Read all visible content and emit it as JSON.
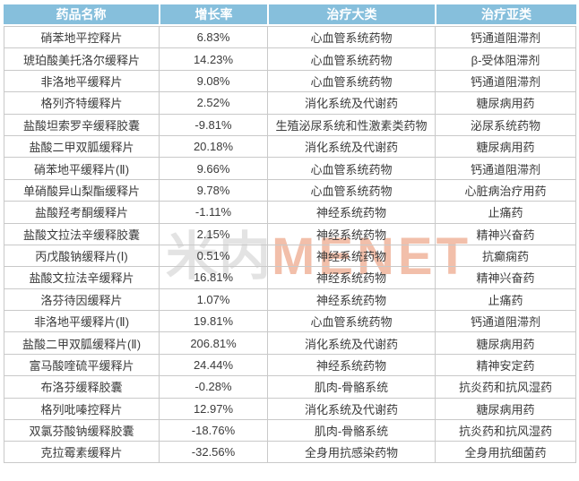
{
  "chart_data": {
    "type": "table",
    "columns": [
      "药品名称",
      "增长率",
      "治疗大类",
      "治疗亚类"
    ],
    "rows": [
      [
        "硝苯地平控释片",
        "6.83%",
        "心血管系统药物",
        "钙通道阻滞剂"
      ],
      [
        "琥珀酸美托洛尔缓释片",
        "14.23%",
        "心血管系统药物",
        "β-受体阻滞剂"
      ],
      [
        "非洛地平缓释片",
        "9.08%",
        "心血管系统药物",
        "钙通道阻滞剂"
      ],
      [
        "格列齐特缓释片",
        "2.52%",
        "消化系统及代谢药",
        "糖尿病用药"
      ],
      [
        "盐酸坦索罗辛缓释胶囊",
        "-9.81%",
        "生殖泌尿系统和性激素类药物",
        "泌尿系统药物"
      ],
      [
        "盐酸二甲双胍缓释片",
        "20.18%",
        "消化系统及代谢药",
        "糖尿病用药"
      ],
      [
        "硝苯地平缓释片(Ⅱ)",
        "9.66%",
        "心血管系统药物",
        "钙通道阻滞剂"
      ],
      [
        "单硝酸异山梨酯缓释片",
        "9.78%",
        "心血管系统药物",
        "心脏病治疗用药"
      ],
      [
        "盐酸羟考酮缓释片",
        "-1.11%",
        "神经系统药物",
        "止痛药"
      ],
      [
        "盐酸文拉法辛缓释胶囊",
        "2.15%",
        "神经系统药物",
        "精神兴奋药"
      ],
      [
        "丙戊酸钠缓释片(Ⅰ)",
        "0.51%",
        "神经系统药物",
        "抗癫痫药"
      ],
      [
        "盐酸文拉法辛缓释片",
        "16.81%",
        "神经系统药物",
        "精神兴奋药"
      ],
      [
        "洛芬待因缓释片",
        "1.07%",
        "神经系统药物",
        "止痛药"
      ],
      [
        "非洛地平缓释片(Ⅱ)",
        "19.81%",
        "心血管系统药物",
        "钙通道阻滞剂"
      ],
      [
        "盐酸二甲双胍缓释片(Ⅱ)",
        "206.81%",
        "消化系统及代谢药",
        "糖尿病用药"
      ],
      [
        "富马酸喹硫平缓释片",
        "24.44%",
        "神经系统药物",
        "精神安定药"
      ],
      [
        "布洛芬缓释胶囊",
        "-0.28%",
        "肌肉-骨骼系统",
        "抗炎药和抗风湿药"
      ],
      [
        "格列吡嗪控释片",
        "12.97%",
        "消化系统及代谢药",
        "糖尿病用药"
      ],
      [
        "双氯芬酸钠缓释胶囊",
        "-18.76%",
        "肌肉-骨骼系统",
        "抗炎药和抗风湿药"
      ],
      [
        "克拉霉素缓释片",
        "-32.56%",
        "全身用抗感染药物",
        "全身用抗细菌药"
      ]
    ]
  },
  "watermark": {
    "cn": "米内",
    "en": "MENET"
  },
  "colors": {
    "header_bg": "#86BFDC",
    "header_text": "#FFFFFF",
    "border": "#C9C9C9",
    "body_text": "#3B3B3B",
    "watermark_cn": "#E3E3E3",
    "watermark_en": "#F2BFAA"
  }
}
